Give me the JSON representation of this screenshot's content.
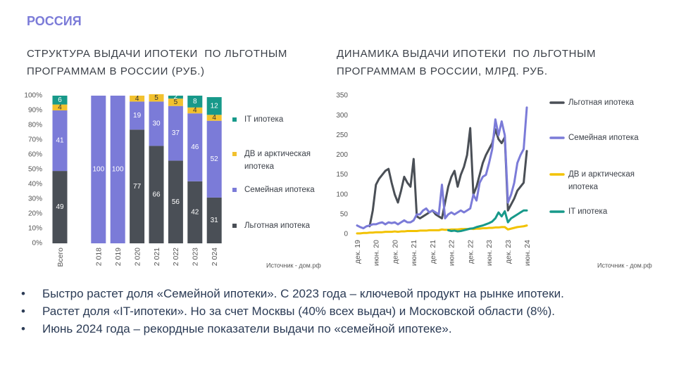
{
  "header": {
    "title": "РОССИЯ"
  },
  "chart_data": [
    {
      "type": "bar",
      "stacked": true,
      "title": "СТРУКТУРА ВЫДАЧИ ИПОТЕКИ  ПО ЛЬГОТНЫМ ПРОГРАММАМ В РОССИИ (РУБ.)",
      "source": "Источник - дом.рф",
      "categories": [
        "Всего",
        null,
        "2 018",
        "2 019",
        "2 020",
        "2 021",
        "2 022",
        "2 023",
        "2 024"
      ],
      "series": [
        {
          "name": "Льготная ипотека",
          "color": "#4a4f56",
          "values": [
            49,
            null,
            null,
            null,
            77,
            66,
            56,
            42,
            31
          ]
        },
        {
          "name": "Семейная ипотека",
          "color": "#7b7bd8",
          "values": [
            41,
            null,
            100,
            100,
            19,
            30,
            37,
            46,
            52
          ]
        },
        {
          "name": "ДВ и арктическая ипотека",
          "color": "#f2c12e",
          "values": [
            4,
            null,
            null,
            null,
            4,
            5,
            5,
            4,
            4
          ]
        },
        {
          "name": "IT ипотека",
          "color": "#17998a",
          "values": [
            6,
            null,
            null,
            null,
            null,
            null,
            2,
            8,
            12
          ]
        }
      ],
      "ylim": [
        0,
        100
      ],
      "yticks": [
        {
          "value": 0,
          "label": "0%"
        },
        {
          "value": 10,
          "label": "10%"
        },
        {
          "value": 20,
          "label": "20%"
        },
        {
          "value": 30,
          "label": "30%"
        },
        {
          "value": 40,
          "label": "40%"
        },
        {
          "value": 50,
          "label": "50%"
        },
        {
          "value": 60,
          "label": "60%"
        },
        {
          "value": 70,
          "label": "70%"
        },
        {
          "value": 80,
          "label": "80%"
        },
        {
          "value": 90,
          "label": "90%"
        },
        {
          "value": 100,
          "label": "100%"
        }
      ],
      "legend": "right"
    },
    {
      "type": "line",
      "title": "ДИНАМИКА ВЫДАЧИ ИПОТЕКИ  ПО ЛЬГОТНЫМ ПРОГРАММАМ В РОССИИ, МЛРД. РУБ.",
      "source": "Источник - дом.рф",
      "categories": [
        "дек. 19",
        null,
        null,
        null,
        null,
        null,
        "июн. 20",
        null,
        null,
        null,
        null,
        null,
        "дек. 20",
        null,
        null,
        null,
        null,
        null,
        "июн. 21",
        null,
        null,
        null,
        null,
        null,
        "дек. 21",
        null,
        null,
        null,
        null,
        null,
        "июн. 22",
        null,
        null,
        null,
        null,
        null,
        "дек. 22",
        null,
        null,
        null,
        null,
        null,
        "июн. 23",
        null,
        null,
        null,
        null,
        null,
        "дек. 23",
        null,
        null,
        null,
        null,
        null,
        "июн. 24"
      ],
      "series": [
        {
          "name": "Льготная ипотека",
          "color": "#4a4f56",
          "values": [
            null,
            null,
            null,
            null,
            20,
            60,
            125,
            140,
            150,
            160,
            165,
            130,
            100,
            80,
            110,
            145,
            130,
            120,
            190,
            45,
            40,
            45,
            50,
            55,
            60,
            50,
            45,
            40,
            80,
            120,
            145,
            160,
            120,
            150,
            170,
            200,
            268,
            100,
            120,
            150,
            180,
            200,
            215,
            230,
            265,
            240,
            230,
            245,
            60,
            75,
            90,
            110,
            120,
            130,
            210
          ]
        },
        {
          "name": "Семейная ипотека",
          "color": "#7b7bd8",
          "values": [
            22,
            18,
            15,
            20,
            22,
            25,
            25,
            28,
            30,
            25,
            30,
            28,
            30,
            25,
            30,
            35,
            30,
            30,
            35,
            50,
            50,
            60,
            65,
            55,
            60,
            55,
            50,
            125,
            40,
            50,
            55,
            50,
            55,
            60,
            55,
            60,
            65,
            100,
            85,
            130,
            145,
            150,
            180,
            215,
            290,
            250,
            285,
            250,
            80,
            100,
            130,
            180,
            200,
            215,
            320
          ]
        },
        {
          "name": "ДВ и арктическая ипотека",
          "color": "#f2c200",
          "values": [
            2,
            2,
            3,
            3,
            4,
            4,
            5,
            5,
            5,
            6,
            6,
            6,
            7,
            6,
            7,
            7,
            8,
            8,
            8,
            8,
            9,
            9,
            9,
            10,
            10,
            10,
            10,
            12,
            11,
            11,
            12,
            12,
            12,
            13,
            13,
            13,
            14,
            13,
            14,
            14,
            15,
            15,
            16,
            16,
            17,
            17,
            18,
            18,
            12,
            14,
            16,
            18,
            19,
            20,
            22
          ]
        },
        {
          "name": "IT ипотека",
          "color": "#17998a",
          "values": [
            null,
            null,
            null,
            null,
            null,
            null,
            null,
            null,
            null,
            null,
            null,
            null,
            null,
            null,
            null,
            null,
            null,
            null,
            null,
            null,
            null,
            null,
            null,
            null,
            null,
            null,
            null,
            null,
            null,
            10,
            8,
            9,
            7,
            8,
            10,
            12,
            14,
            15,
            18,
            20,
            22,
            25,
            28,
            32,
            40,
            55,
            45,
            58,
            30,
            40,
            45,
            50,
            55,
            60,
            60
          ]
        }
      ],
      "ylim": [
        0,
        350
      ],
      "yticks": [
        0,
        50,
        100,
        150,
        200,
        250,
        300,
        350
      ],
      "legend": "right"
    }
  ],
  "bullets": [
    "Быстро растет доля «Семейной ипотеки». С 2023 года – ключевой продукт на рынке ипотеки.",
    "Растет доля «IT-ипотеки». Но за счет Москвы (40% всех выдач) и Московской области (8%).",
    "Июнь 2024 года – рекордные показатели выдачи по «семейной ипотеке»."
  ]
}
